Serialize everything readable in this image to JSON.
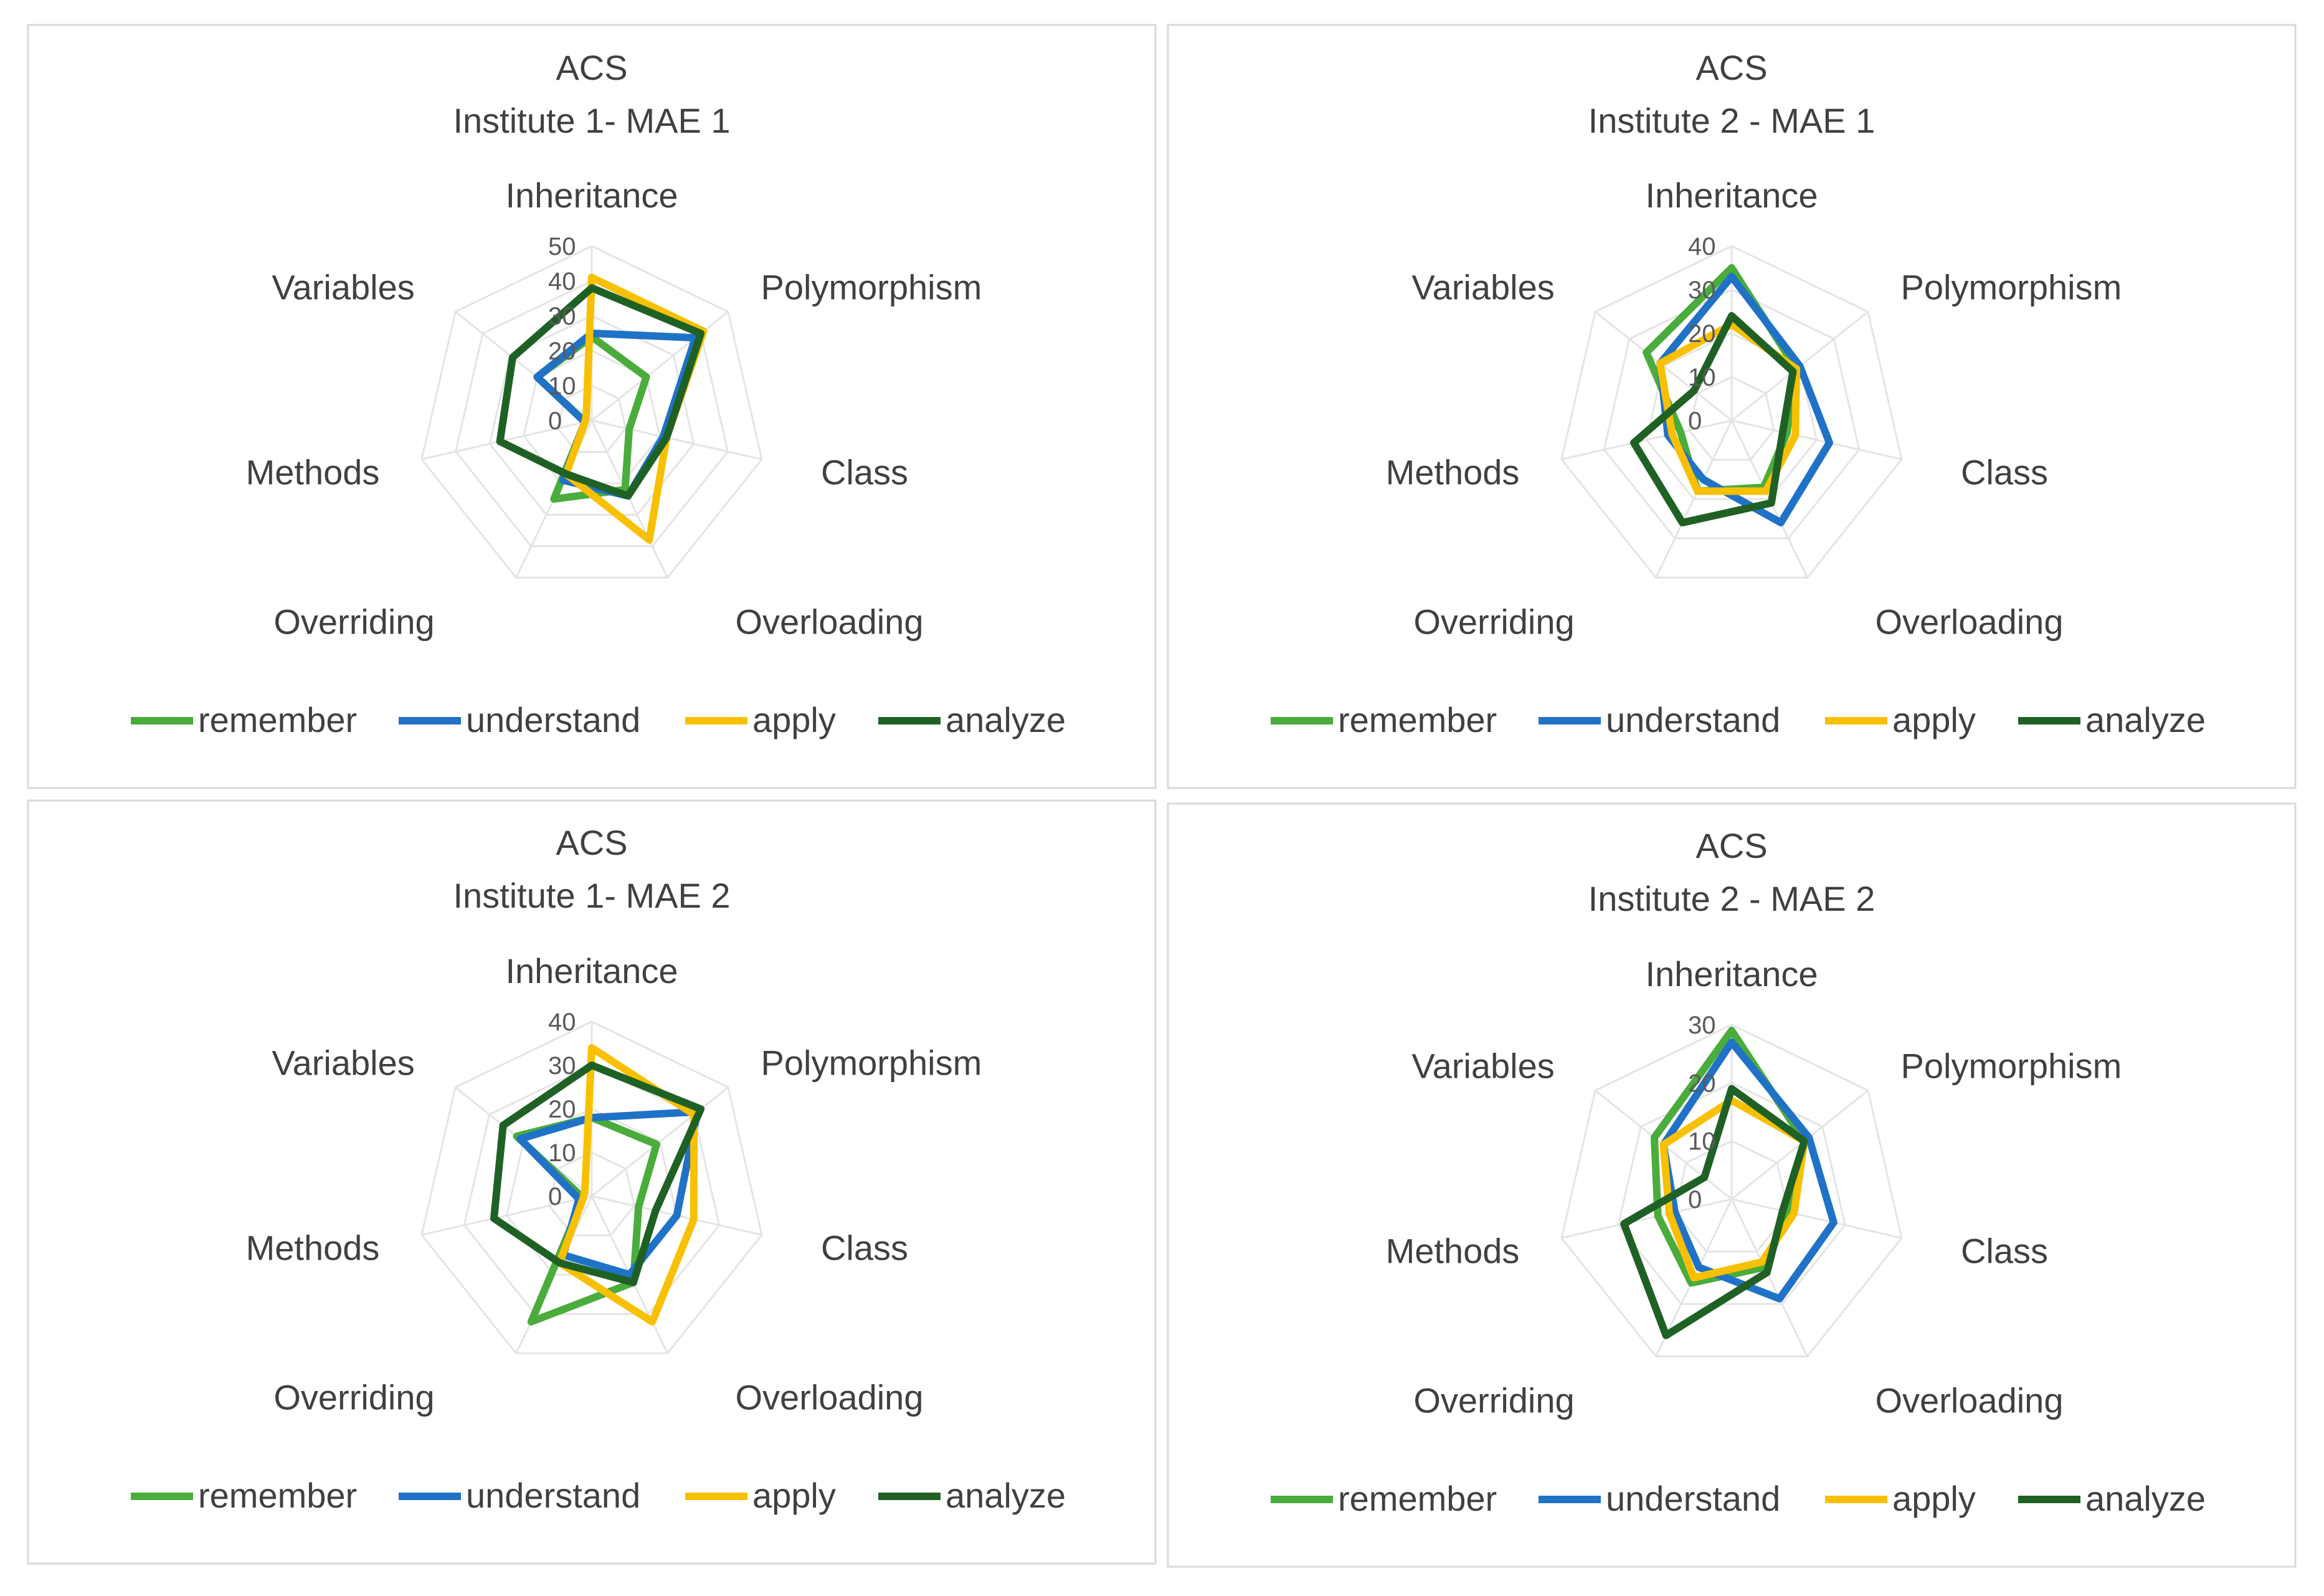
{
  "colors": {
    "remember": "#4aac3c",
    "understand": "#1f72c6",
    "apply": "#f8c000",
    "analyze": "#1f6125"
  },
  "chart_data": [
    {
      "type": "radar",
      "title": "ACS",
      "subtitle": "Institute 1- MAE 1",
      "categories": [
        "Inheritance",
        "Polymorphism",
        "Class",
        "Overloading",
        "Overriding",
        "Methods",
        "Variables"
      ],
      "rmax": 50,
      "ticks": [
        "50",
        "40",
        "30",
        "20",
        "10",
        "0"
      ],
      "legend_position": "bottom",
      "series": [
        {
          "name": "remember",
          "values": [
            24,
            20,
            11,
            22,
            25,
            2,
            20
          ]
        },
        {
          "name": "understand",
          "values": [
            25,
            38,
            21,
            24,
            19,
            2,
            20
          ]
        },
        {
          "name": "apply",
          "values": [
            41,
            41,
            22,
            38,
            17,
            2,
            2
          ]
        },
        {
          "name": "analyze",
          "values": [
            38,
            40,
            22,
            24,
            17,
            27,
            29
          ]
        }
      ]
    },
    {
      "type": "radar",
      "title": "ACS",
      "subtitle": "Institute 2 - MAE 1",
      "categories": [
        "Inheritance",
        "Polymorphism",
        "Class",
        "Overloading",
        "Overriding",
        "Methods",
        "Variables"
      ],
      "rmax": 40,
      "ticks": [
        "40",
        "30",
        "20",
        "10",
        "0"
      ],
      "legend_position": "bottom",
      "series": [
        {
          "name": "remember",
          "values": [
            35,
            19,
            13,
            17,
            18,
            12,
            25
          ]
        },
        {
          "name": "understand",
          "values": [
            33,
            20,
            23,
            26,
            15,
            15,
            21
          ]
        },
        {
          "name": "apply",
          "values": [
            22,
            19,
            15,
            18,
            18,
            14,
            21
          ]
        },
        {
          "name": "analyze",
          "values": [
            24,
            18,
            12,
            21,
            26,
            23,
            11
          ]
        }
      ]
    },
    {
      "type": "radar",
      "title": "ACS",
      "subtitle": "Institute 1- MAE 2",
      "categories": [
        "Inheritance",
        "Polymorphism",
        "Class",
        "Overloading",
        "Overriding",
        "Methods",
        "Variables"
      ],
      "rmax": 40,
      "ticks": [
        "40",
        "30",
        "20",
        "10",
        "0"
      ],
      "legend_position": "bottom",
      "series": [
        {
          "name": "remember",
          "values": [
            18,
            19,
            11,
            22,
            32,
            2,
            22
          ]
        },
        {
          "name": "understand",
          "values": [
            18,
            31,
            20,
            20,
            15,
            3,
            21
          ]
        },
        {
          "name": "apply",
          "values": [
            34,
            30,
            24,
            32,
            17,
            2,
            2
          ]
        },
        {
          "name": "analyze",
          "values": [
            30,
            32,
            15,
            22,
            17,
            23,
            26
          ]
        }
      ]
    },
    {
      "type": "radar",
      "title": "ACS",
      "subtitle": "Institute 2 - MAE 2",
      "categories": [
        "Inheritance",
        "Polymorphism",
        "Class",
        "Overloading",
        "Overriding",
        "Methods",
        "Variables"
      ],
      "rmax": 30,
      "ticks": [
        "30",
        "20",
        "10",
        "0"
      ],
      "legend_position": "bottom",
      "series": [
        {
          "name": "remember",
          "values": [
            29,
            16,
            10,
            13,
            16,
            13,
            17
          ]
        },
        {
          "name": "understand",
          "values": [
            27,
            17,
            18,
            19,
            13,
            10,
            15
          ]
        },
        {
          "name": "apply",
          "values": [
            17,
            16,
            11,
            12,
            15,
            11,
            15
          ]
        },
        {
          "name": "analyze",
          "values": [
            19,
            16,
            9,
            14,
            26,
            19,
            6
          ]
        }
      ]
    }
  ]
}
